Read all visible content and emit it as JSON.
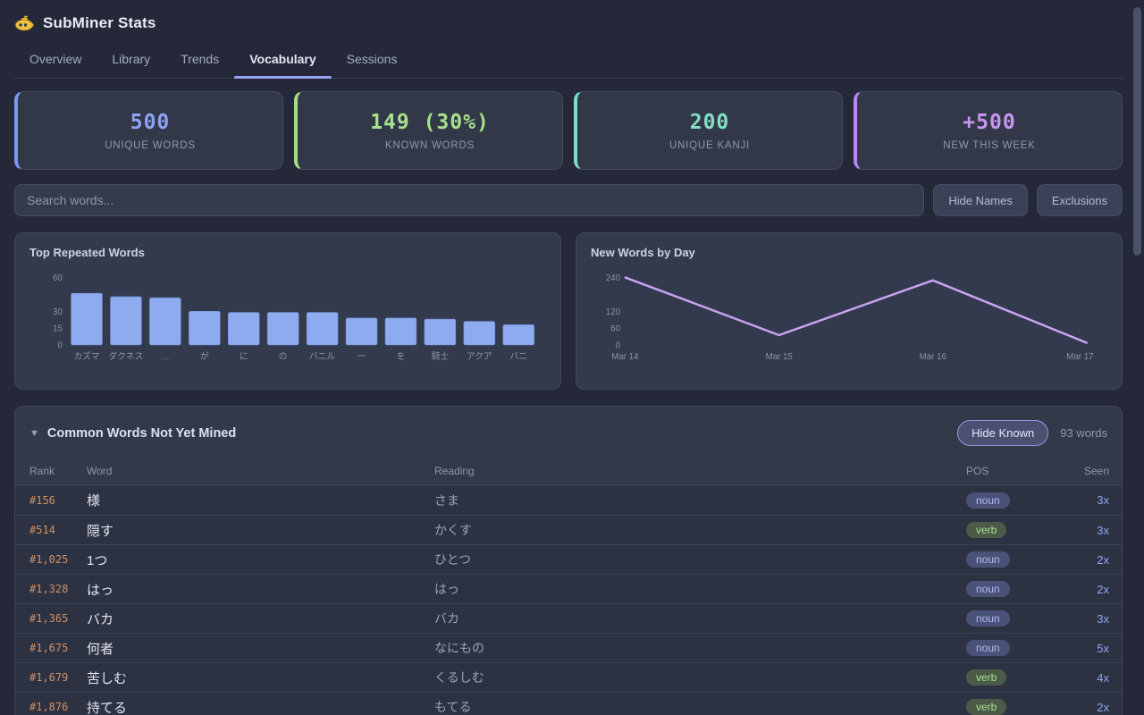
{
  "header": {
    "title": "SubMiner Stats"
  },
  "tabs": [
    {
      "label": "Overview",
      "active": false
    },
    {
      "label": "Library",
      "active": false
    },
    {
      "label": "Trends",
      "active": false
    },
    {
      "label": "Vocabulary",
      "active": true
    },
    {
      "label": "Sessions",
      "active": false
    }
  ],
  "stats": [
    {
      "value": "500",
      "label": "UNIQUE WORDS",
      "accent": "#7e97f2",
      "value_color": "#8da4f5"
    },
    {
      "value": "149 (30%)",
      "label": "KNOWN WORDS",
      "accent": "#a3dd8c",
      "value_color": "#a7e18d"
    },
    {
      "value": "200",
      "label": "UNIQUE KANJI",
      "accent": "#7bdec4",
      "value_color": "#82dfc4"
    },
    {
      "value": "+500",
      "label": "NEW THIS WEEK",
      "accent": "#bb86f5",
      "value_color": "#c795f2"
    }
  ],
  "search": {
    "placeholder": "Search words...",
    "buttons": [
      "Hide Names",
      "Exclusions"
    ]
  },
  "chart_data": [
    {
      "type": "bar",
      "title": "Top Repeated Words",
      "categories": [
        "カズマ",
        "ダクネス",
        "…",
        "が",
        "に",
        "の",
        "バニル",
        "一",
        "を",
        "騎士",
        "アクア",
        "バニ"
      ],
      "values": [
        46,
        43,
        42,
        30,
        29,
        29,
        29,
        24,
        24,
        23,
        21,
        18
      ],
      "yticks": [
        0,
        15,
        30,
        60
      ],
      "ylim": [
        0,
        62
      ],
      "bar_color": "#8fabef",
      "grid": false,
      "legend": "none"
    },
    {
      "type": "line",
      "title": "New Words by Day",
      "x": [
        "Mar 14",
        "Mar 15",
        "Mar 16",
        "Mar 17"
      ],
      "values": [
        240,
        35,
        230,
        8
      ],
      "yticks": [
        0,
        60,
        120,
        240
      ],
      "ylim": [
        0,
        248
      ],
      "line_color": "#c7a4f0",
      "grid": false,
      "legend": "none"
    }
  ],
  "table": {
    "collapse_icon": "▼",
    "title": "Common Words Not Yet Mined",
    "hide_known_label": "Hide Known",
    "count_label": "93 words",
    "columns": [
      "Rank",
      "Word",
      "Reading",
      "POS",
      "Seen"
    ],
    "rows": [
      {
        "rank": "#156",
        "word": "様",
        "reading": "さま",
        "pos": "noun",
        "seen": "3x"
      },
      {
        "rank": "#514",
        "word": "隠す",
        "reading": "かくす",
        "pos": "verb",
        "seen": "3x"
      },
      {
        "rank": "#1,025",
        "word": "1つ",
        "reading": "ひとつ",
        "pos": "noun",
        "seen": "2x"
      },
      {
        "rank": "#1,328",
        "word": "はっ",
        "reading": "はっ",
        "pos": "noun",
        "seen": "2x"
      },
      {
        "rank": "#1,365",
        "word": "バカ",
        "reading": "バカ",
        "pos": "noun",
        "seen": "3x"
      },
      {
        "rank": "#1,675",
        "word": "何者",
        "reading": "なにもの",
        "pos": "noun",
        "seen": "5x"
      },
      {
        "rank": "#1,679",
        "word": "苦しむ",
        "reading": "くるしむ",
        "pos": "verb",
        "seen": "4x"
      },
      {
        "rank": "#1,876",
        "word": "持てる",
        "reading": "もてる",
        "pos": "verb",
        "seen": "2x"
      }
    ]
  }
}
